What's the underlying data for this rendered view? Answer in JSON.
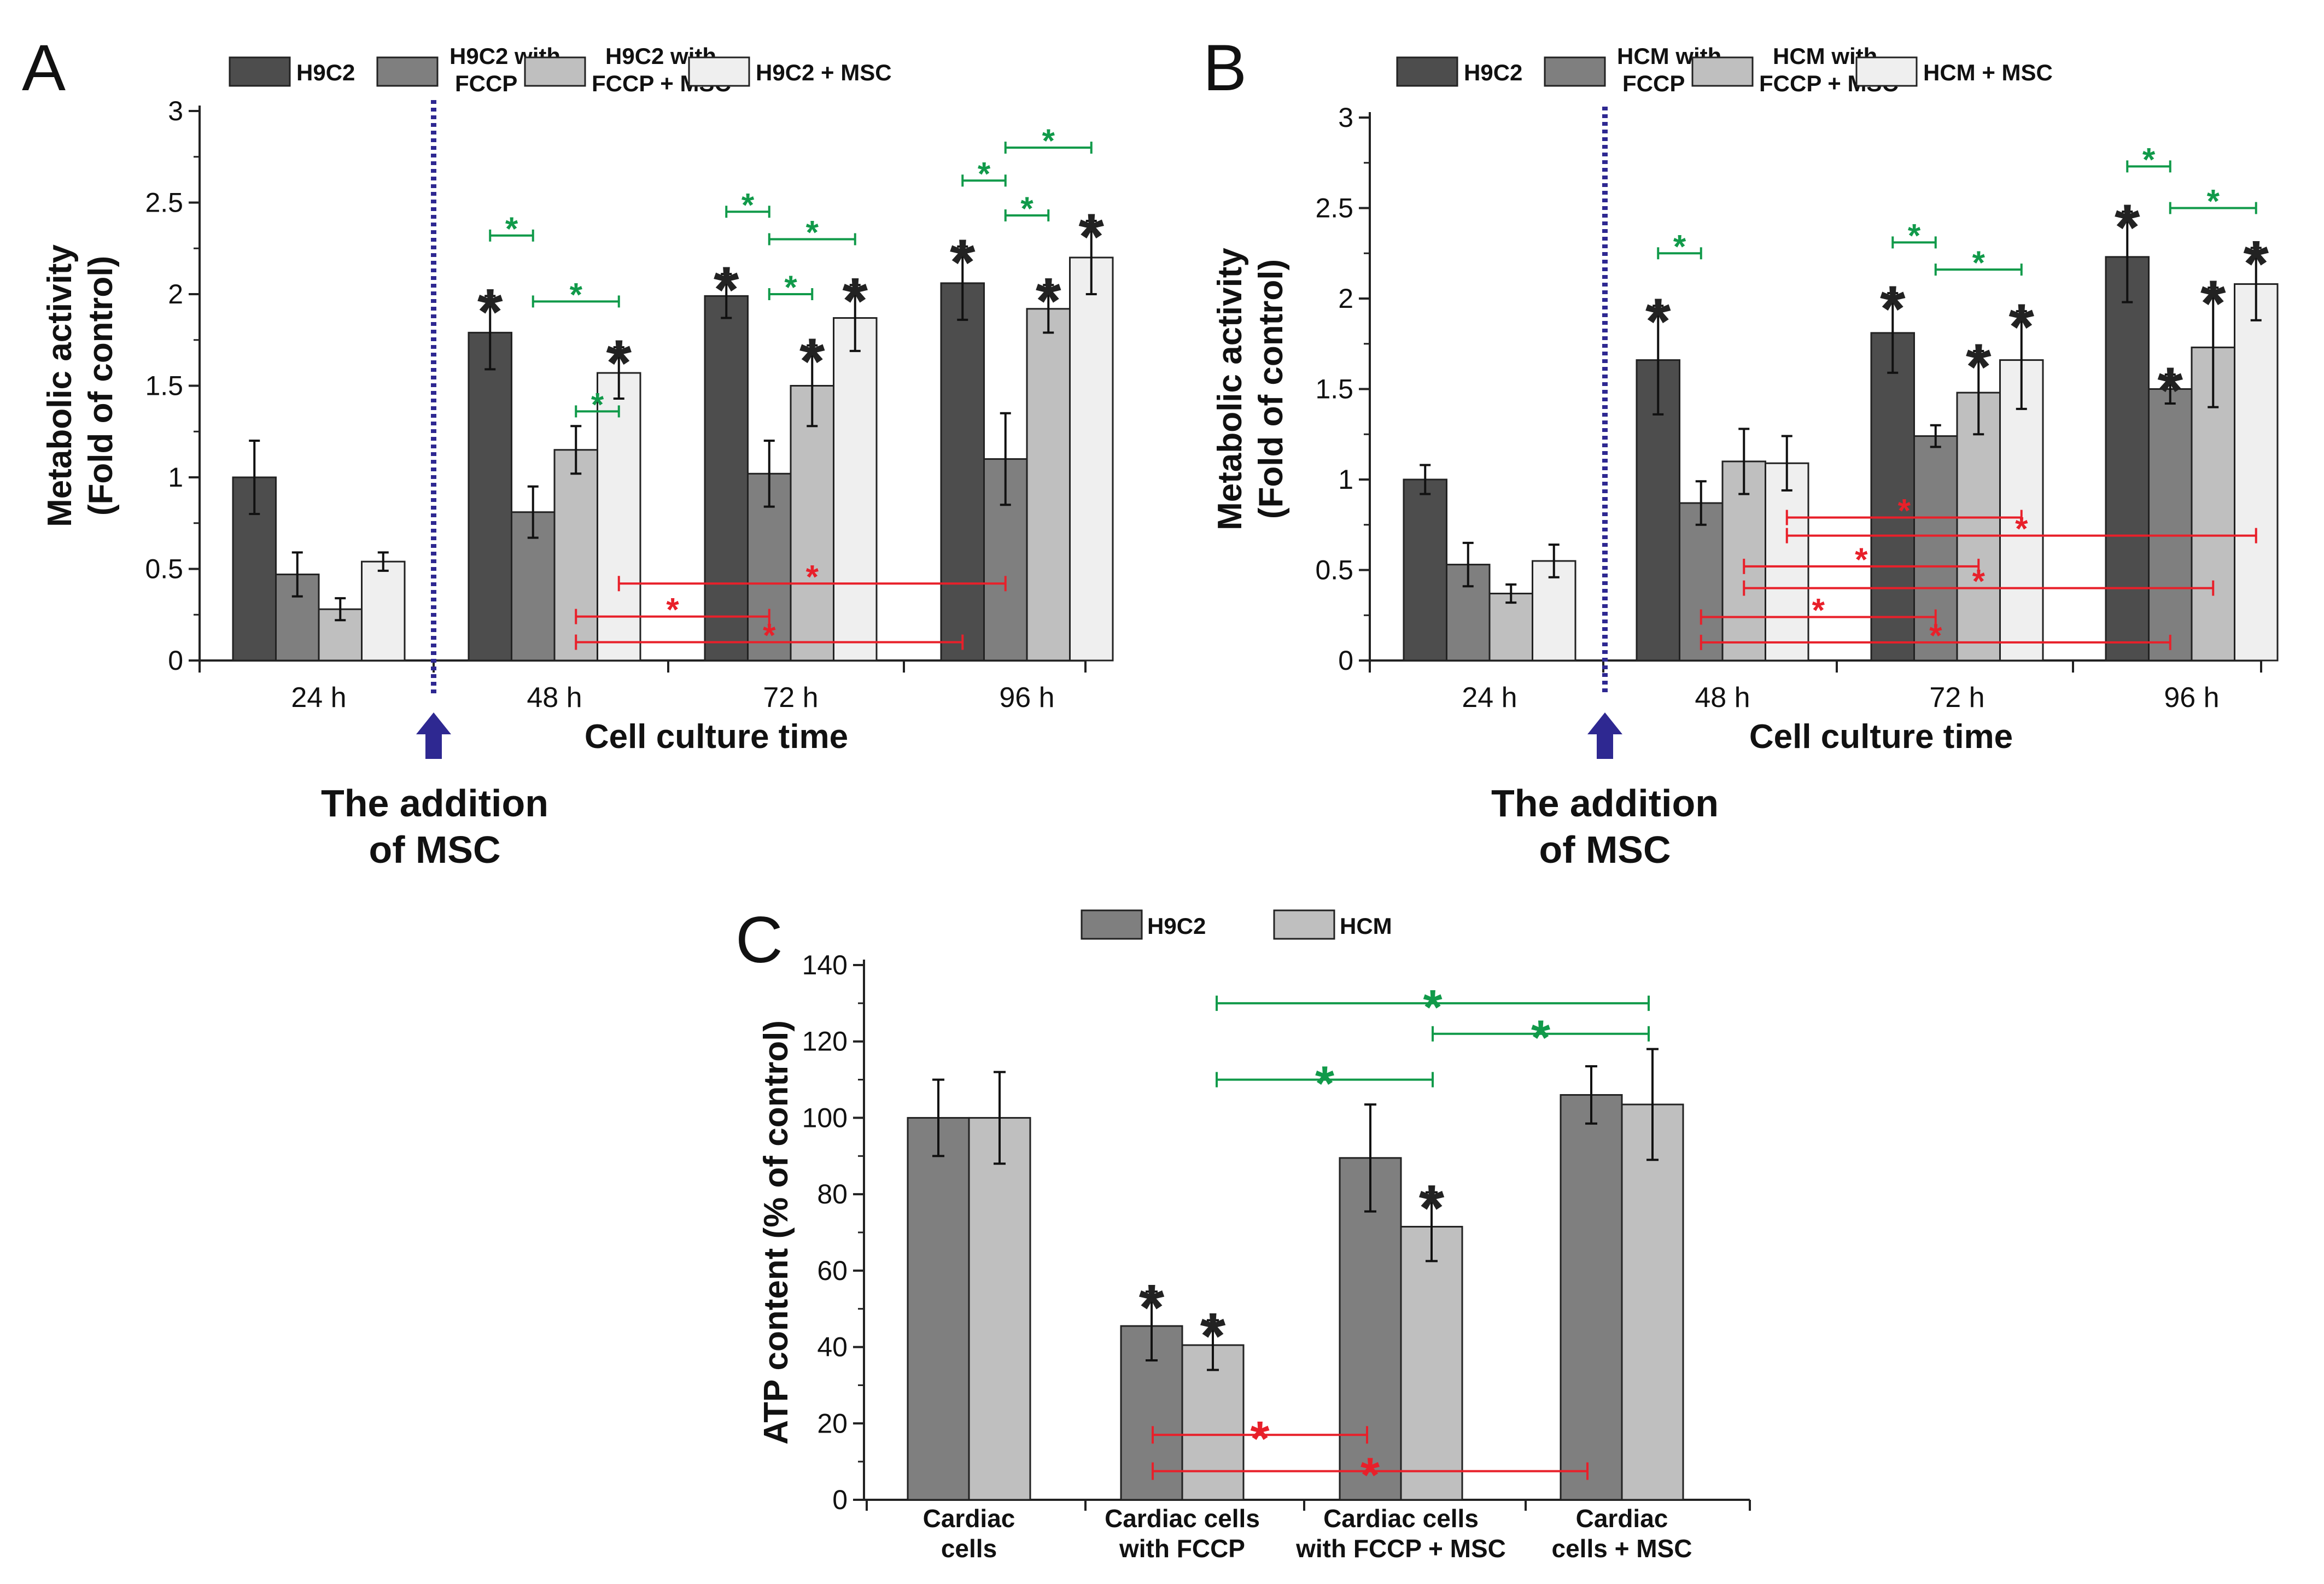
{
  "colors": {
    "c1": "#4d4d4d",
    "c2": "#7f7f7f",
    "c3": "#bfbfbf",
    "c4": "#efefef",
    "green": "#119a4a",
    "red": "#e8202a",
    "arrow": "#2e2891"
  },
  "chart_data": [
    {
      "id": "A",
      "letter": "A",
      "type": "bar",
      "ylabel_line1": "Metabolic activity",
      "ylabel_line2": "(Fold of control)",
      "xlabel": "Cell culture time",
      "ylim": [
        0,
        3
      ],
      "yticks": [
        "0",
        "0.5",
        "1",
        "1.5",
        "2",
        "2.5",
        "3"
      ],
      "categories": [
        "24 h",
        "48 h",
        "72 h",
        "96 h"
      ],
      "legend_labels": [
        [
          "H9C2"
        ],
        [
          "H9C2 with",
          "FCCP"
        ],
        [
          "H9C2 with",
          "FCCP + MSC"
        ],
        [
          "H9C2 + MSC"
        ]
      ],
      "series": [
        {
          "name": "H9C2",
          "values": [
            1.0,
            1.79,
            1.99,
            2.06
          ],
          "errors": [
            0.2,
            0.2,
            0.12,
            0.2
          ]
        },
        {
          "name": "H9C2 with FCCP",
          "values": [
            0.47,
            0.81,
            1.02,
            1.1
          ],
          "errors": [
            0.12,
            0.14,
            0.18,
            0.25
          ]
        },
        {
          "name": "H9C2 with FCCP + MSC",
          "values": [
            0.28,
            1.15,
            1.5,
            1.92
          ],
          "errors": [
            0.06,
            0.13,
            0.22,
            0.13
          ]
        },
        {
          "name": "H9C2 + MSC",
          "values": [
            0.54,
            1.57,
            1.87,
            2.2
          ],
          "errors": [
            0.05,
            0.14,
            0.18,
            0.2
          ]
        }
      ],
      "marker_symbol": "*",
      "black_markers": [
        [
          1,
          0
        ],
        [
          1,
          3
        ],
        [
          2,
          0
        ],
        [
          2,
          2
        ],
        [
          2,
          3
        ],
        [
          3,
          0
        ],
        [
          3,
          2
        ],
        [
          3,
          3
        ]
      ],
      "green_brackets": [
        {
          "cat": 1,
          "from": 0,
          "to": 1,
          "y": 2.32
        },
        {
          "cat": 1,
          "from": 1,
          "to": 3,
          "y": 1.96
        },
        {
          "cat": 1,
          "from": 2,
          "to": 3,
          "y": 1.36
        },
        {
          "cat": 2,
          "from": 0,
          "to": 1,
          "y": 2.45
        },
        {
          "cat": 2,
          "from": 1,
          "to": 3,
          "y": 2.3
        },
        {
          "cat": 2,
          "from": 1,
          "to": 2,
          "y": 2.0
        },
        {
          "cat": 3,
          "from": 0,
          "to": 1,
          "y": 2.62
        },
        {
          "cat": 3,
          "from": 1,
          "to": 3,
          "y": 2.8
        },
        {
          "cat": 3,
          "from": 1,
          "to": 2,
          "y": 2.43
        }
      ],
      "red_brackets": [
        {
          "fromCat": 1,
          "fromBar": 3,
          "toCat": 3,
          "toBar": 1,
          "y": 0.42
        },
        {
          "fromCat": 1,
          "fromBar": 2,
          "toCat": 2,
          "toBar": 1,
          "y": 0.24
        },
        {
          "fromCat": 1,
          "fromBar": 2,
          "toCat": 3,
          "toBar": 0,
          "y": 0.1
        }
      ],
      "addition_label": [
        "The addition",
        "of MSC"
      ]
    },
    {
      "id": "B",
      "letter": "B",
      "type": "bar",
      "ylabel_line1": "Metabolic activity",
      "ylabel_line2": "(Fold of control)",
      "xlabel": "Cell culture time",
      "ylim": [
        0,
        3
      ],
      "yticks": [
        "0",
        "0.5",
        "1",
        "1.5",
        "2",
        "2.5",
        "3"
      ],
      "categories": [
        "24 h",
        "48 h",
        "72 h",
        "96 h"
      ],
      "legend_labels": [
        [
          "H9C2"
        ],
        [
          "HCM with",
          "FCCP"
        ],
        [
          "HCM with",
          "FCCP + MSC"
        ],
        [
          "HCM + MSC"
        ]
      ],
      "series": [
        {
          "name": "H9C2",
          "values": [
            1.0,
            1.66,
            1.81,
            2.23
          ],
          "errors": [
            0.08,
            0.3,
            0.22,
            0.25
          ]
        },
        {
          "name": "HCM with FCCP",
          "values": [
            0.53,
            0.87,
            1.24,
            1.5
          ],
          "errors": [
            0.12,
            0.12,
            0.06,
            0.08
          ]
        },
        {
          "name": "HCM with FCCP + MSC",
          "values": [
            0.37,
            1.1,
            1.48,
            1.73
          ],
          "errors": [
            0.05,
            0.18,
            0.23,
            0.33
          ]
        },
        {
          "name": "HCM + MSC",
          "values": [
            0.55,
            1.09,
            1.66,
            2.08
          ],
          "errors": [
            0.09,
            0.15,
            0.27,
            0.2
          ]
        }
      ],
      "marker_symbol": "*",
      "black_markers": [
        [
          1,
          0
        ],
        [
          2,
          0
        ],
        [
          2,
          2
        ],
        [
          2,
          3
        ],
        [
          3,
          0
        ],
        [
          3,
          1
        ],
        [
          3,
          2
        ],
        [
          3,
          3
        ]
      ],
      "green_brackets": [
        {
          "cat": 1,
          "from": 0,
          "to": 1,
          "y": 2.25
        },
        {
          "cat": 2,
          "from": 0,
          "to": 1,
          "y": 2.31
        },
        {
          "cat": 2,
          "from": 1,
          "to": 3,
          "y": 2.16
        },
        {
          "cat": 3,
          "from": 0,
          "to": 1,
          "y": 2.73
        },
        {
          "cat": 3,
          "from": 1,
          "to": 3,
          "y": 2.5
        }
      ],
      "red_brackets": [
        {
          "fromCat": 1,
          "fromBar": 3,
          "toCat": 2,
          "toBar": 3,
          "y": 0.79
        },
        {
          "fromCat": 1,
          "fromBar": 3,
          "toCat": 3,
          "toBar": 3,
          "y": 0.69
        },
        {
          "fromCat": 1,
          "fromBar": 2,
          "toCat": 2,
          "toBar": 2,
          "y": 0.52
        },
        {
          "fromCat": 1,
          "fromBar": 2,
          "toCat": 3,
          "toBar": 2,
          "y": 0.4
        },
        {
          "fromCat": 1,
          "fromBar": 1,
          "toCat": 2,
          "toBar": 1,
          "y": 0.24
        },
        {
          "fromCat": 1,
          "fromBar": 1,
          "toCat": 3,
          "toBar": 1,
          "y": 0.1
        }
      ],
      "addition_label": [
        "The addition",
        "of MSC"
      ]
    },
    {
      "id": "C",
      "letter": "C",
      "type": "bar",
      "ylabel": "ATP content (% of control)",
      "ylim": [
        0,
        140
      ],
      "yticks": [
        "0",
        "20",
        "40",
        "60",
        "80",
        "100",
        "120",
        "140"
      ],
      "categories": [
        [
          "Cardiac",
          "cells"
        ],
        [
          "Cardiac cells",
          "with FCCP"
        ],
        [
          "Cardiac cells",
          "with FCCP + MSC"
        ],
        [
          "Cardiac",
          "cells + MSC"
        ]
      ],
      "legend_labels": [
        [
          "H9C2"
        ],
        [
          "HCM"
        ]
      ],
      "series": [
        {
          "name": "H9C2",
          "values": [
            100,
            45.5,
            89.5,
            106
          ],
          "errors": [
            10,
            9,
            14,
            7.5
          ]
        },
        {
          "name": "HCM",
          "values": [
            100,
            40.5,
            71.5,
            103.5
          ],
          "errors": [
            12,
            6.5,
            9,
            14.5
          ]
        }
      ],
      "marker_symbol": "*",
      "black_markers": [
        [
          1,
          0
        ],
        [
          1,
          1
        ],
        [
          2,
          1
        ]
      ],
      "green_brackets": [
        {
          "fromCat": 1,
          "toCat": 3,
          "y": 130
        },
        {
          "fromCat": 2,
          "toCat": 3,
          "y": 122
        },
        {
          "fromCat": 1,
          "toCat": 2,
          "y": 110
        }
      ],
      "red_brackets": [
        {
          "fromCat": 1,
          "toCat": 2,
          "y": 17
        },
        {
          "fromCat": 1,
          "toCat": 3,
          "y": 7.5
        }
      ]
    }
  ]
}
